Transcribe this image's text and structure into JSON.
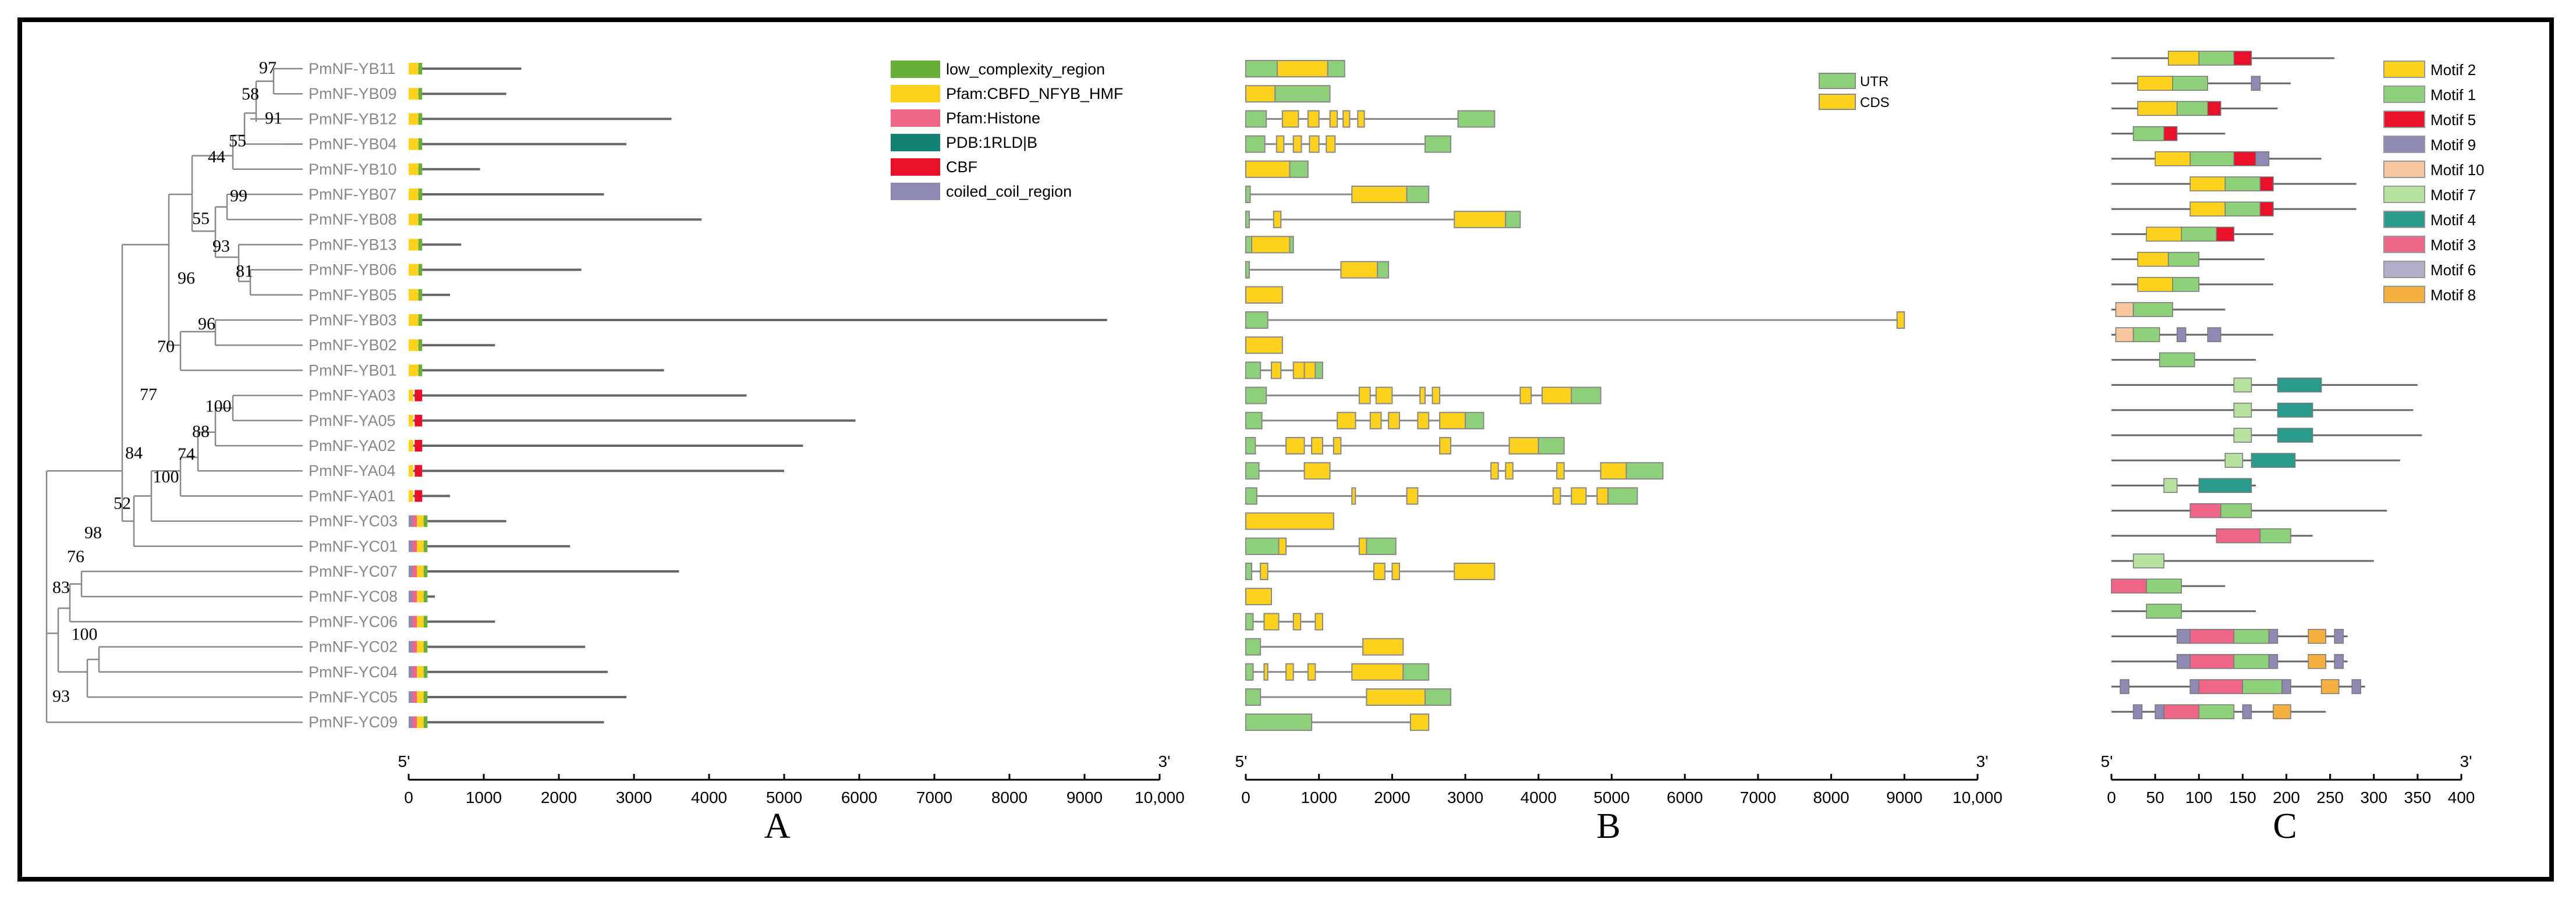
{
  "panel_labels": [
    "A",
    "B",
    "C"
  ],
  "genes": [
    "PmNF-YB11",
    "PmNF-YB09",
    "PmNF-YB12",
    "PmNF-YB04",
    "PmNF-YB10",
    "PmNF-YB07",
    "PmNF-YB08",
    "PmNF-YB13",
    "PmNF-YB06",
    "PmNF-YB05",
    "PmNF-YB03",
    "PmNF-YB02",
    "PmNF-YB01",
    "PmNF-YA03",
    "PmNF-YA05",
    "PmNF-YA02",
    "PmNF-YA04",
    "PmNF-YA01",
    "PmNF-YC03",
    "PmNF-YC01",
    "PmNF-YC07",
    "PmNF-YC08",
    "PmNF-YC06",
    "PmNF-YC02",
    "PmNF-YC04",
    "PmNF-YC05",
    "PmNF-YC09"
  ],
  "bootstrap": [
    "97",
    "58",
    "91",
    "55",
    "44",
    "99",
    "55",
    "93",
    "81",
    "96",
    "96",
    "70",
    "77",
    "100",
    "88",
    "74",
    "100",
    "84",
    "52",
    "98",
    "76",
    "83",
    "100",
    "93"
  ],
  "axis_a": {
    "ticks": [
      "0",
      "1000",
      "2000",
      "3000",
      "4000",
      "5000",
      "6000",
      "7000",
      "8000",
      "9000",
      "10,000"
    ],
    "start": "5'",
    "end": "3'"
  },
  "axis_b": {
    "ticks": [
      "0",
      "1000",
      "2000",
      "3000",
      "4000",
      "5000",
      "6000",
      "7000",
      "8000",
      "9000",
      "10,000"
    ],
    "start": "5'",
    "end": "3'"
  },
  "axis_c": {
    "ticks": [
      "0",
      "50",
      "100",
      "150",
      "200",
      "250",
      "300",
      "350",
      "400"
    ],
    "start": "5'",
    "end": "3'"
  },
  "legend_a": [
    {
      "label": "low_complexity_region",
      "color": "#6aae3a"
    },
    {
      "label": "Pfam:CBFD_NFYB_HMF",
      "color": "#ffd21f"
    },
    {
      "label": "Pfam:Histone",
      "color": "#ef6688"
    },
    {
      "label": "PDB:1RLD|B",
      "color": "#138074"
    },
    {
      "label": "CBF",
      "color": "#e8102a"
    },
    {
      "label": "coiled_coil_region",
      "color": "#8e8ab4"
    }
  ],
  "legend_b": [
    {
      "label": "UTR",
      "color": "#8fd07a"
    },
    {
      "label": "CDS",
      "color": "#ffd21f"
    }
  ],
  "legend_c": [
    {
      "label": "Motif 2",
      "color": "#ffd21f"
    },
    {
      "label": "Motif 1",
      "color": "#8fd07a"
    },
    {
      "label": "Motif 5",
      "color": "#e8102a"
    },
    {
      "label": "Motif 9",
      "color": "#8e8ab4"
    },
    {
      "label": "Motif 10",
      "color": "#f8c7a0"
    },
    {
      "label": "Motif 7",
      "color": "#b8e0a0"
    },
    {
      "label": "Motif 4",
      "color": "#2a9a8a"
    },
    {
      "label": "Motif 3",
      "color": "#ef6688"
    },
    {
      "label": "Motif 6",
      "color": "#b0aec8"
    },
    {
      "label": "Motif 8",
      "color": "#f6b040"
    }
  ],
  "gene_lengths": [
    1500,
    1300,
    3500,
    2900,
    950,
    2600,
    3900,
    700,
    2300,
    550,
    9300,
    1150,
    3400,
    4500,
    5950,
    5250,
    5000,
    550,
    1300,
    2150,
    3600,
    350,
    1150,
    2350,
    2650,
    2900,
    2600
  ],
  "structures": [
    [
      [
        0,
        "u",
        0,
        430
      ],
      [
        1,
        "c",
        430,
        1120
      ],
      [
        2,
        "u",
        1120,
        1350
      ]
    ],
    [
      [
        1,
        "c",
        0,
        400
      ],
      [
        2,
        "u",
        400,
        1150
      ]
    ],
    [
      [
        0,
        "u",
        0,
        280
      ],
      [
        0,
        "c",
        500,
        720
      ],
      [
        0,
        "c",
        850,
        1000
      ],
      [
        0,
        "c",
        1150,
        1250
      ],
      [
        0,
        "c",
        1330,
        1420
      ],
      [
        0,
        "c",
        1530,
        1620
      ],
      [
        2,
        "u",
        2900,
        3400
      ]
    ],
    [
      [
        0,
        "u",
        0,
        260
      ],
      [
        0,
        "c",
        420,
        520
      ],
      [
        0,
        "c",
        650,
        760
      ],
      [
        0,
        "c",
        870,
        1000
      ],
      [
        0,
        "c",
        1100,
        1220
      ],
      [
        2,
        "u",
        2450,
        2800
      ]
    ],
    [
      [
        1,
        "c",
        0,
        600
      ],
      [
        2,
        "u",
        600,
        850
      ]
    ],
    [
      [
        0,
        "u",
        0,
        60
      ],
      [
        1,
        "c",
        1450,
        2200
      ],
      [
        2,
        "u",
        2200,
        2500
      ]
    ],
    [
      [
        0,
        "u",
        0,
        40
      ],
      [
        0,
        "c",
        380,
        480
      ],
      [
        1,
        "c",
        2850,
        3550
      ],
      [
        2,
        "u",
        3550,
        3750
      ]
    ],
    [
      [
        0,
        "u",
        0,
        80
      ],
      [
        1,
        "c",
        80,
        600
      ],
      [
        2,
        "u",
        600,
        650
      ]
    ],
    [
      [
        0,
        "u",
        0,
        40
      ],
      [
        1,
        "c",
        1300,
        1800
      ],
      [
        2,
        "u",
        1800,
        1950
      ]
    ],
    [
      [
        1,
        "c",
        0,
        500
      ]
    ],
    [
      [
        0,
        "u",
        0,
        300
      ],
      [
        1,
        "c",
        8900,
        9000
      ]
    ],
    [
      [
        1,
        "c",
        0,
        500
      ]
    ],
    [
      [
        0,
        "u",
        0,
        200
      ],
      [
        0,
        "c",
        350,
        480
      ],
      [
        0,
        "c",
        650,
        800
      ],
      [
        1,
        "c",
        800,
        950
      ],
      [
        2,
        "u",
        950,
        1050
      ]
    ],
    [
      [
        0,
        "u",
        0,
        280
      ],
      [
        0,
        "c",
        1550,
        1700
      ],
      [
        0,
        "c",
        1780,
        2000
      ],
      [
        0,
        "c",
        2380,
        2450
      ],
      [
        0,
        "c",
        2550,
        2650
      ],
      [
        0,
        "c",
        3750,
        3900
      ],
      [
        0,
        "c",
        4050,
        4450
      ],
      [
        2,
        "u",
        4450,
        4850
      ]
    ],
    [
      [
        0,
        "u",
        0,
        220
      ],
      [
        0,
        "c",
        1250,
        1500
      ],
      [
        0,
        "c",
        1700,
        1850
      ],
      [
        0,
        "c",
        1950,
        2100
      ],
      [
        0,
        "c",
        2350,
        2500
      ],
      [
        1,
        "c",
        2650,
        3000
      ],
      [
        2,
        "u",
        3000,
        3250
      ]
    ],
    [
      [
        0,
        "u",
        0,
        130
      ],
      [
        0,
        "c",
        550,
        800
      ],
      [
        0,
        "c",
        900,
        1050
      ],
      [
        0,
        "c",
        1200,
        1300
      ],
      [
        0,
        "c",
        2650,
        2800
      ],
      [
        1,
        "c",
        3600,
        4000
      ],
      [
        2,
        "u",
        4000,
        4350
      ]
    ],
    [
      [
        0,
        "u",
        0,
        180
      ],
      [
        0,
        "c",
        800,
        1150
      ],
      [
        0,
        "c",
        3350,
        3450
      ],
      [
        0,
        "c",
        3550,
        3650
      ],
      [
        0,
        "c",
        4250,
        4350
      ],
      [
        1,
        "c",
        4850,
        5200
      ],
      [
        2,
        "u",
        5200,
        5700
      ]
    ],
    [
      [
        0,
        "u",
        0,
        150
      ],
      [
        0,
        "c",
        1450,
        1480
      ],
      [
        0,
        "c",
        2200,
        2350
      ],
      [
        0,
        "c",
        4200,
        4300
      ],
      [
        0,
        "c",
        4450,
        4650
      ],
      [
        1,
        "c",
        4800,
        4950
      ],
      [
        2,
        "u",
        4950,
        5350
      ]
    ],
    [
      [
        1,
        "c",
        0,
        1200
      ]
    ],
    [
      [
        0,
        "u",
        0,
        450
      ],
      [
        1,
        "c",
        450,
        550
      ],
      [
        0,
        "c",
        1550,
        1650
      ],
      [
        2,
        "u",
        1650,
        2050
      ]
    ],
    [
      [
        0,
        "u",
        0,
        80
      ],
      [
        0,
        "c",
        200,
        300
      ],
      [
        0,
        "c",
        1750,
        1900
      ],
      [
        0,
        "c",
        2000,
        2100
      ],
      [
        1,
        "c",
        2850,
        3400
      ]
    ],
    [
      [
        1,
        "c",
        0,
        350
      ]
    ],
    [
      [
        0,
        "u",
        0,
        100
      ],
      [
        1,
        "c",
        250,
        450
      ],
      [
        0,
        "c",
        650,
        750
      ],
      [
        0,
        "c",
        950,
        1050
      ]
    ],
    [
      [
        0,
        "u",
        0,
        200
      ],
      [
        1,
        "c",
        1600,
        2150
      ]
    ],
    [
      [
        0,
        "u",
        0,
        100
      ],
      [
        0,
        "c",
        250,
        300
      ],
      [
        0,
        "c",
        550,
        650
      ],
      [
        0,
        "c",
        850,
        950
      ],
      [
        1,
        "c",
        1450,
        2150
      ],
      [
        2,
        "u",
        2150,
        2500
      ]
    ],
    [
      [
        0,
        "u",
        0,
        200
      ],
      [
        1,
        "c",
        1650,
        2450
      ],
      [
        2,
        "u",
        2450,
        2800
      ]
    ],
    [
      [
        0,
        "u",
        0,
        900
      ],
      [
        1,
        "c",
        2250,
        2500
      ]
    ]
  ],
  "protein_lengths": [
    255,
    205,
    190,
    130,
    240,
    280,
    280,
    185,
    175,
    185,
    130,
    185,
    165,
    350,
    345,
    355,
    330,
    165,
    315,
    230,
    300,
    130,
    165,
    270,
    270,
    290,
    245
  ],
  "motifs": [
    [
      [
        2,
        65,
        100
      ],
      [
        1,
        100,
        140
      ],
      [
        5,
        140,
        160
      ]
    ],
    [
      [
        2,
        30,
        70
      ],
      [
        1,
        70,
        110
      ],
      [
        9,
        160,
        170
      ]
    ],
    [
      [
        2,
        30,
        75
      ],
      [
        1,
        75,
        110
      ],
      [
        5,
        110,
        125
      ]
    ],
    [
      [
        1,
        25,
        60
      ],
      [
        5,
        60,
        75
      ]
    ],
    [
      [
        2,
        50,
        90
      ],
      [
        1,
        90,
        140
      ],
      [
        5,
        140,
        165
      ],
      [
        9,
        165,
        180
      ]
    ],
    [
      [
        2,
        90,
        130
      ],
      [
        1,
        130,
        170
      ],
      [
        5,
        170,
        185
      ]
    ],
    [
      [
        2,
        90,
        130
      ],
      [
        1,
        130,
        170
      ],
      [
        5,
        170,
        185
      ]
    ],
    [
      [
        2,
        40,
        80
      ],
      [
        1,
        80,
        120
      ],
      [
        5,
        120,
        140
      ]
    ],
    [
      [
        2,
        30,
        65
      ],
      [
        1,
        65,
        100
      ]
    ],
    [
      [
        2,
        30,
        70
      ],
      [
        1,
        70,
        100
      ]
    ],
    [
      [
        10,
        5,
        25
      ],
      [
        1,
        25,
        70
      ]
    ],
    [
      [
        10,
        5,
        25
      ],
      [
        1,
        25,
        55
      ],
      [
        9,
        75,
        85
      ],
      [
        9,
        110,
        125
      ]
    ],
    [
      [
        1,
        55,
        95
      ]
    ],
    [
      [
        7,
        140,
        160
      ],
      [
        4,
        190,
        240
      ]
    ],
    [
      [
        7,
        140,
        160
      ],
      [
        4,
        190,
        230
      ]
    ],
    [
      [
        7,
        140,
        160
      ],
      [
        4,
        190,
        230
      ]
    ],
    [
      [
        7,
        130,
        150
      ],
      [
        4,
        160,
        210
      ]
    ],
    [
      [
        7,
        60,
        75
      ],
      [
        4,
        100,
        160
      ]
    ],
    [
      [
        3,
        90,
        125
      ],
      [
        1,
        125,
        160
      ]
    ],
    [
      [
        3,
        120,
        170
      ],
      [
        1,
        170,
        205
      ]
    ],
    [
      [
        7,
        25,
        60
      ]
    ],
    [
      [
        3,
        0,
        40
      ],
      [
        1,
        40,
        80
      ]
    ],
    [
      [
        1,
        40,
        80
      ]
    ],
    [
      [
        9,
        75,
        90
      ],
      [
        3,
        90,
        140
      ],
      [
        1,
        140,
        180
      ],
      [
        9,
        180,
        190
      ],
      [
        8,
        225,
        245
      ],
      [
        9,
        255,
        265
      ]
    ],
    [
      [
        9,
        75,
        90
      ],
      [
        3,
        90,
        140
      ],
      [
        1,
        140,
        180
      ],
      [
        9,
        180,
        190
      ],
      [
        8,
        225,
        245
      ],
      [
        9,
        255,
        265
      ]
    ],
    [
      [
        9,
        10,
        20
      ],
      [
        9,
        90,
        100
      ],
      [
        3,
        100,
        150
      ],
      [
        1,
        150,
        195
      ],
      [
        9,
        195,
        205
      ],
      [
        8,
        240,
        260
      ],
      [
        9,
        275,
        285
      ]
    ],
    [
      [
        9,
        25,
        35
      ],
      [
        9,
        50,
        60
      ],
      [
        3,
        60,
        100
      ],
      [
        1,
        100,
        140
      ],
      [
        9,
        150,
        160
      ],
      [
        8,
        185,
        205
      ]
    ]
  ]
}
